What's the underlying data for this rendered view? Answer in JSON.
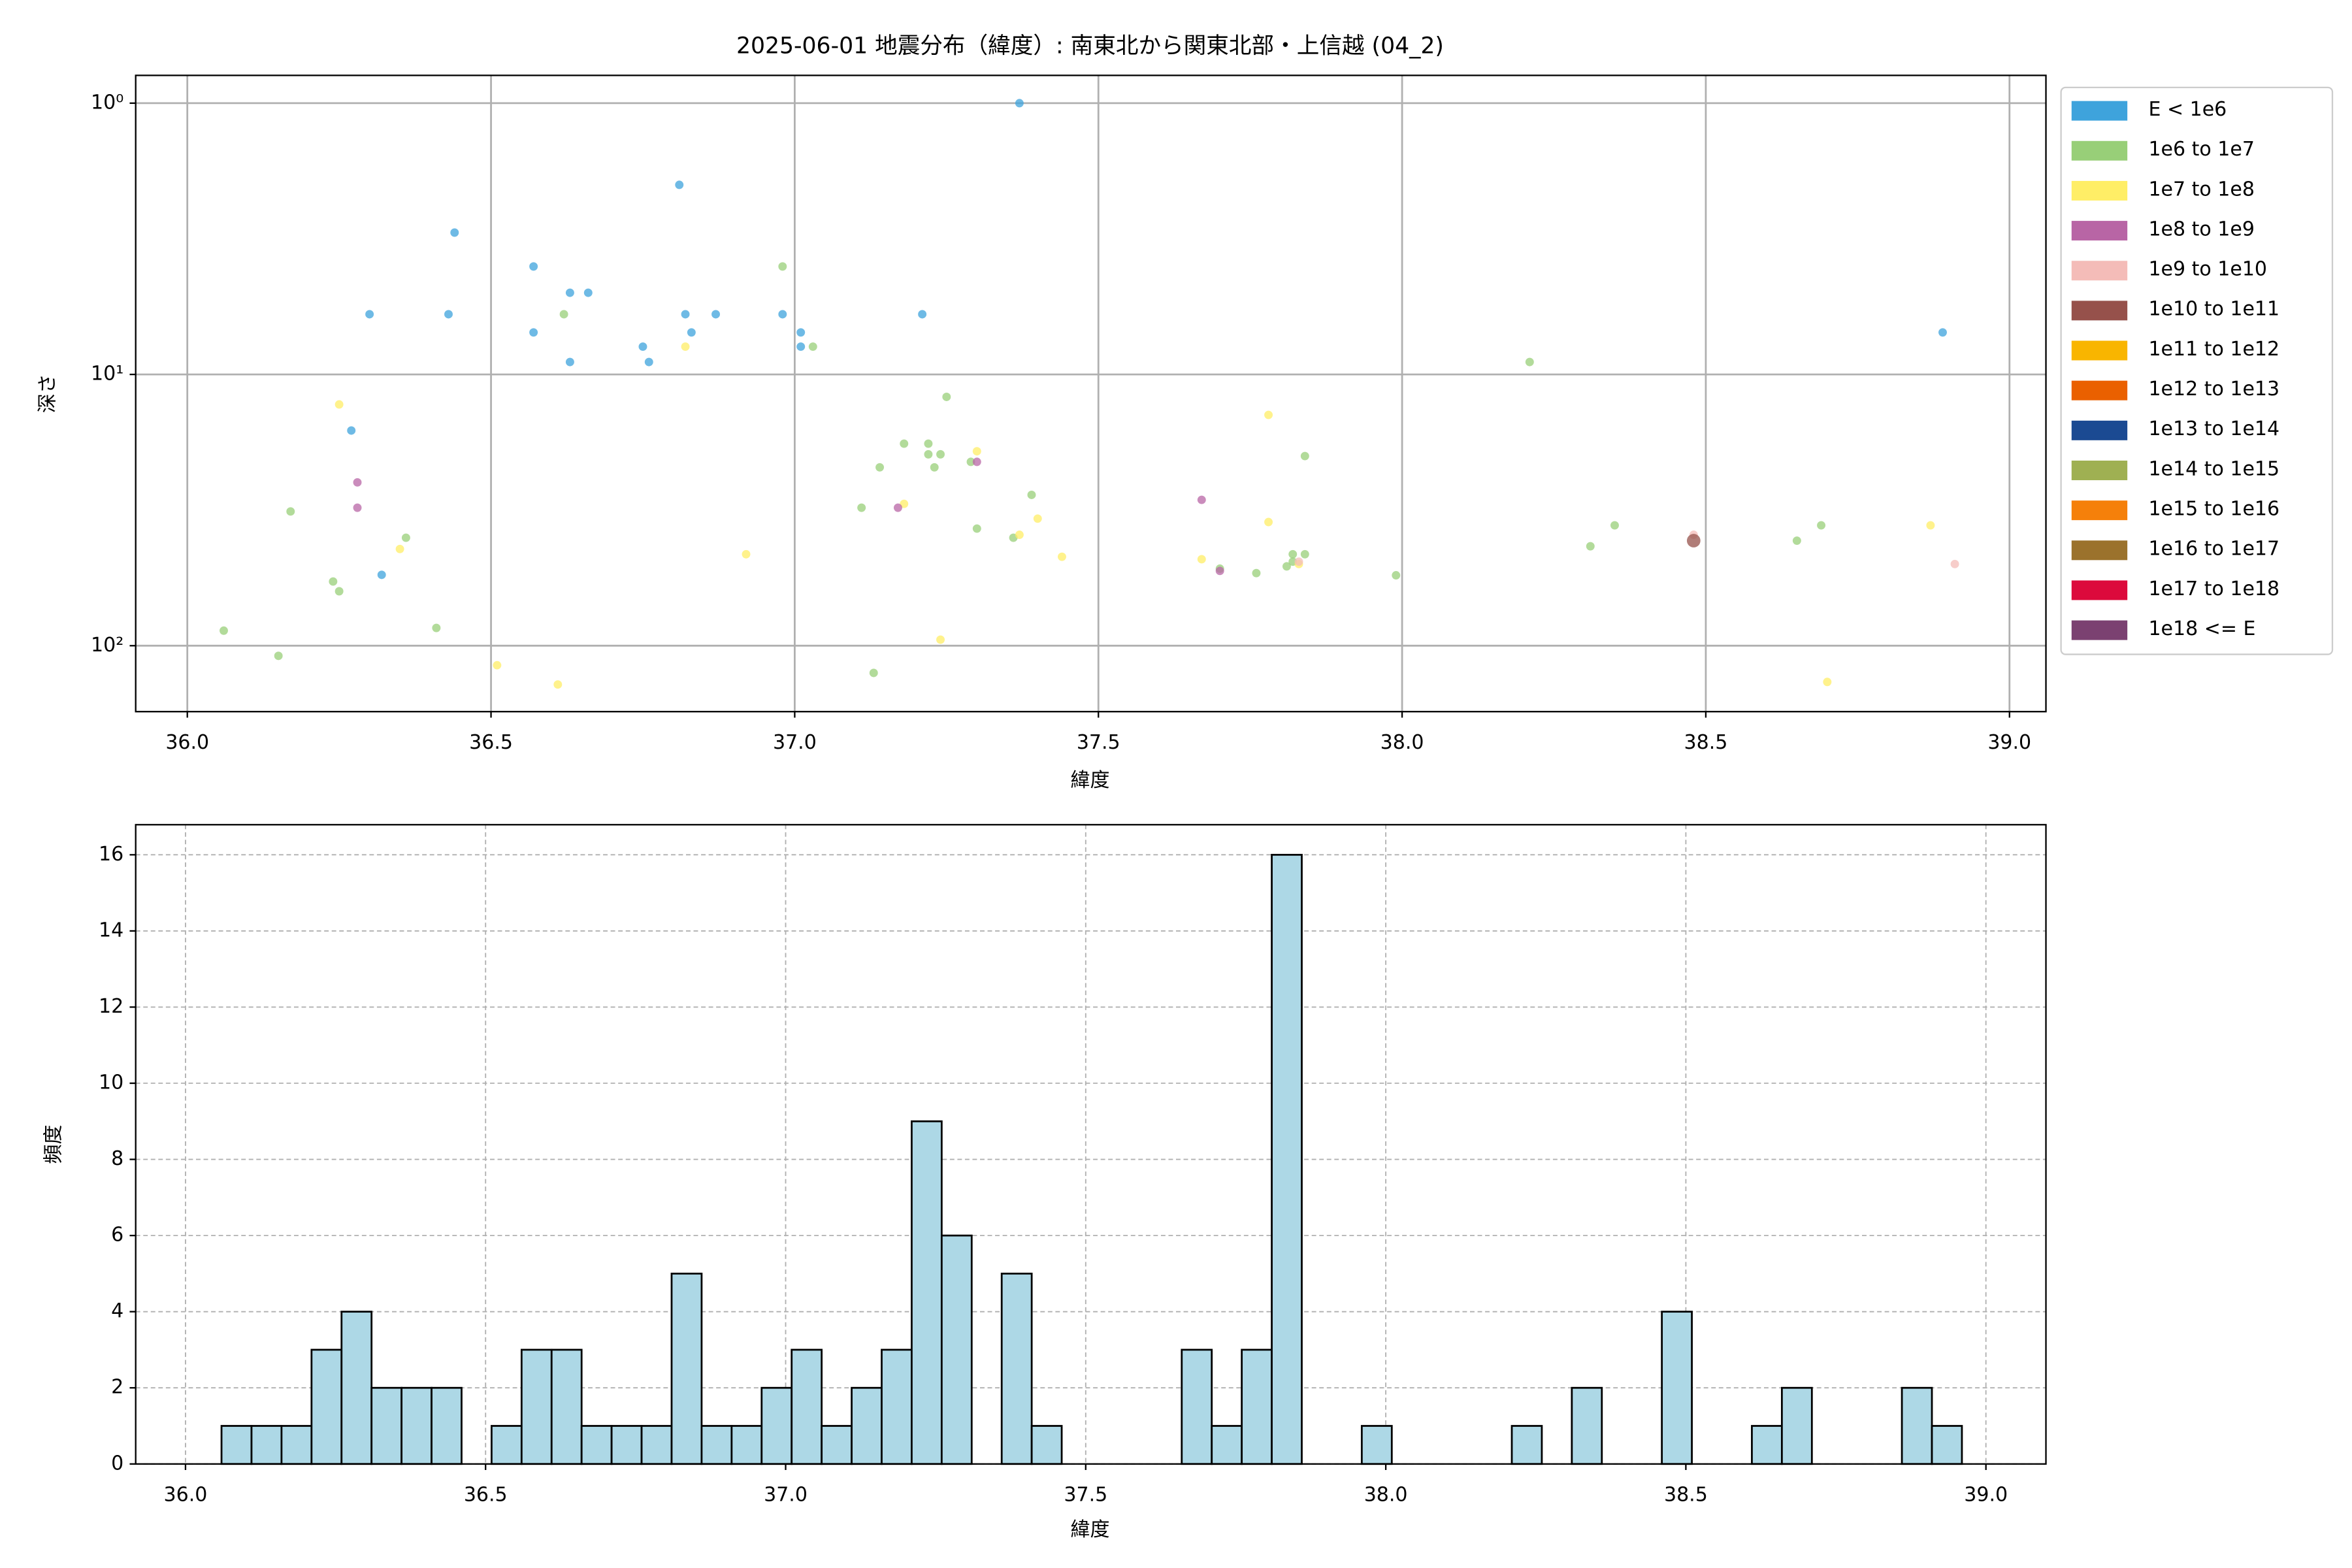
{
  "chart_data": [
    {
      "type": "scatter",
      "title": "2025-06-01 地震分布（緯度）: 南東北から関東北部・上信越 (04_2)",
      "xlabel": "緯度",
      "ylabel": "深さ",
      "xlim": [
        35.915,
        39.06
      ],
      "ylim": [
        0.79,
        175
      ],
      "ylog": true,
      "y_inverted": true,
      "grid": true,
      "legend": "outside right",
      "xticks": [
        {
          "value": 36.0,
          "label": "36.0"
        },
        {
          "value": 36.5,
          "label": "36.5"
        },
        {
          "value": 37.0,
          "label": "37.0"
        },
        {
          "value": 37.5,
          "label": "37.5"
        },
        {
          "value": 38.0,
          "label": "38.0"
        },
        {
          "value": 38.5,
          "label": "38.5"
        },
        {
          "value": 39.0,
          "label": "39.0"
        }
      ],
      "yticks": [
        {
          "value": 1,
          "label": "10⁰"
        },
        {
          "value": 10,
          "label": "10¹"
        },
        {
          "value": 100,
          "label": "10²"
        }
      ],
      "series": [
        {
          "name": "E < 1e6",
          "color": "#3ea3dc",
          "x": [
            36.3,
            36.27,
            36.32,
            36.43,
            36.44,
            36.57,
            36.57,
            36.63,
            36.66,
            36.63,
            36.75,
            36.76,
            36.81,
            36.82,
            36.83,
            36.87,
            36.98,
            37.01,
            37.01,
            37.21,
            37.37,
            38.89
          ],
          "values": [
            6.0,
            16.1,
            54.8,
            6.0,
            3.0,
            4.0,
            7.0,
            5.0,
            5.0,
            9.0,
            7.9,
            9.0,
            2.0,
            6.0,
            7.0,
            6.0,
            6.0,
            7.0,
            7.9,
            6.0,
            1.0,
            7.0
          ]
        },
        {
          "name": "1e6 to 1e7",
          "color": "#98cf78",
          "x": [
            36.06,
            36.15,
            36.17,
            36.24,
            36.25,
            36.36,
            36.41,
            36.62,
            36.98,
            37.03,
            37.11,
            37.13,
            37.14,
            37.18,
            37.22,
            37.22,
            37.23,
            37.24,
            37.25,
            37.29,
            37.3,
            37.36,
            37.39,
            37.7,
            37.76,
            37.82,
            37.82,
            37.84,
            37.84,
            37.99,
            38.21,
            38.31,
            38.35,
            38.65,
            38.69,
            37.81
          ],
          "values": [
            88,
            109,
            32,
            58,
            63,
            40,
            86,
            6.0,
            4.0,
            7.9,
            31,
            126,
            22,
            18,
            18,
            19.7,
            22,
            19.7,
            12.1,
            21,
            37,
            40,
            27.8,
            52,
            54,
            49,
            46,
            46,
            20,
            55,
            9.0,
            43,
            36,
            41,
            36,
            51
          ]
        },
        {
          "name": "1e7 to 1e8",
          "color": "#ffee66",
          "x": [
            36.25,
            36.35,
            36.51,
            36.61,
            36.82,
            36.92,
            37.18,
            37.24,
            37.3,
            37.37,
            37.4,
            37.44,
            37.67,
            37.78,
            37.78,
            37.83,
            38.7,
            38.87
          ],
          "values": [
            12.9,
            44,
            118,
            139,
            7.9,
            46,
            30,
            95,
            19.2,
            39,
            34,
            47,
            48,
            14.1,
            35,
            50,
            136,
            36
          ]
        },
        {
          "name": "1e8 to 1e9",
          "color": "#b865a5",
          "x": [
            36.28,
            36.28,
            37.17,
            37.3,
            37.67,
            37.7
          ],
          "values": [
            25,
            31,
            31,
            21,
            29,
            53
          ]
        },
        {
          "name": "1e9 to 1e10",
          "color": "#f4bcb8",
          "x": [
            38.91,
            38.48,
            37.83
          ],
          "values": [
            50,
            39,
            49
          ]
        },
        {
          "name": "1e10 to 1e11",
          "color": "#96514b",
          "x": [
            38.48
          ],
          "values": [
            41
          ]
        },
        {
          "name": "1e11 to 1e12",
          "color": "#f9b500",
          "x": [],
          "values": []
        },
        {
          "name": "1e12 to 1e13",
          "color": "#ea6000",
          "x": [],
          "values": []
        },
        {
          "name": "1e13 to 1e14",
          "color": "#1b4a92",
          "x": [],
          "values": []
        },
        {
          "name": "1e14 to 1e15",
          "color": "#9fb052",
          "x": [],
          "values": []
        },
        {
          "name": "1e15 to 1e16",
          "color": "#f5800a",
          "x": [],
          "values": []
        },
        {
          "name": "1e16 to 1e17",
          "color": "#9b722c",
          "x": [],
          "values": []
        },
        {
          "name": "1e17 to 1e18",
          "color": "#dc0a3c",
          "x": [],
          "values": []
        },
        {
          "name": "1e18 <= E",
          "color": "#7b4171",
          "x": [],
          "values": []
        }
      ]
    },
    {
      "type": "histogram",
      "xlabel": "緯度",
      "ylabel": "頻度",
      "color": "#add8e6",
      "edgecolor": "#000000",
      "grid": true,
      "xlim": [
        35.917,
        39.1
      ],
      "ylim": [
        0,
        16.79
      ],
      "xticks": [
        {
          "value": 36.0,
          "label": "36.0"
        },
        {
          "value": 36.5,
          "label": "36.5"
        },
        {
          "value": 37.0,
          "label": "37.0"
        },
        {
          "value": 37.5,
          "label": "37.5"
        },
        {
          "value": 38.0,
          "label": "38.0"
        },
        {
          "value": 38.5,
          "label": "38.5"
        },
        {
          "value": 39.0,
          "label": "39.0"
        }
      ],
      "yticks": [
        0,
        2,
        4,
        6,
        8,
        10,
        12,
        14,
        16
      ],
      "bins": [
        36.06,
        36.11,
        36.16,
        36.21,
        36.26,
        36.31,
        36.36,
        36.41,
        36.46,
        36.51,
        36.56,
        36.61,
        36.66,
        36.71,
        36.76,
        36.81,
        36.86,
        36.91,
        36.96,
        37.01,
        37.06,
        37.11,
        37.16,
        37.21,
        37.26,
        37.31,
        37.36,
        37.41,
        37.46,
        37.51,
        37.56,
        37.61,
        37.66,
        37.71,
        37.76,
        37.81,
        37.86,
        37.91,
        37.96,
        38.01,
        38.06,
        38.11,
        38.16,
        38.21,
        38.26,
        38.31,
        38.36,
        38.41,
        38.46,
        38.51,
        38.56,
        38.61,
        38.66,
        38.71,
        38.76,
        38.81,
        38.86,
        38.91,
        38.96
      ],
      "values": [
        1,
        1,
        1,
        3,
        4,
        2,
        2,
        2,
        0,
        1,
        3,
        3,
        1,
        1,
        1,
        5,
        1,
        1,
        2,
        3,
        1,
        2,
        3,
        9,
        6,
        0,
        5,
        1,
        0,
        0,
        0,
        0,
        3,
        1,
        3,
        16,
        0,
        0,
        1,
        0,
        0,
        0,
        0,
        1,
        0,
        2,
        0,
        0,
        4,
        0,
        0,
        1,
        2,
        0,
        0,
        0,
        2,
        1
      ]
    }
  ]
}
